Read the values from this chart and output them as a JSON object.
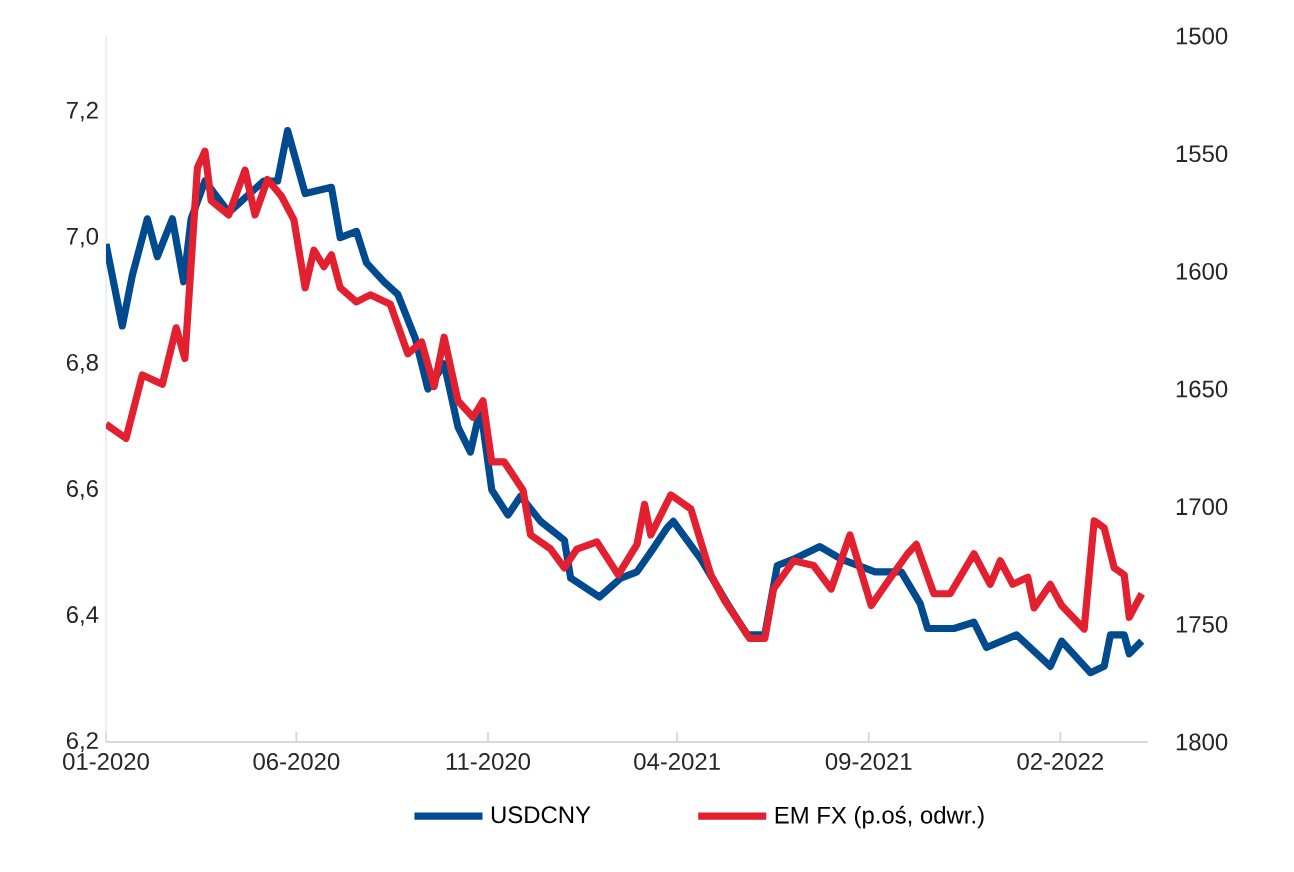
{
  "chart_data": {
    "type": "line",
    "xlim": [
      "2020-01-01",
      "2022-04-12"
    ],
    "xticks": [
      {
        "value": "2020-01-01",
        "label": "01-2020"
      },
      {
        "value": "2020-06-01",
        "label": "06-2020"
      },
      {
        "value": "2020-11-01",
        "label": "11-2020"
      },
      {
        "value": "2021-04-01",
        "label": "04-2021"
      },
      {
        "value": "2021-09-01",
        "label": "09-2021"
      },
      {
        "value": "2022-02-01",
        "label": "02-2022"
      }
    ],
    "ylim": [
      6.2,
      7.32
    ],
    "yticks": [
      {
        "value": 6.2,
        "label": "6,2"
      },
      {
        "value": 6.4,
        "label": "6,4"
      },
      {
        "value": 6.6,
        "label": "6,6"
      },
      {
        "value": 6.8,
        "label": "6,8"
      },
      {
        "value": 7.0,
        "label": "7,0"
      },
      {
        "value": 7.2,
        "label": "7,2"
      }
    ],
    "y2lim": [
      1800,
      1500
    ],
    "y2ticks": [
      1500,
      1550,
      1600,
      1650,
      1700,
      1750,
      1800
    ],
    "legend": "bottom",
    "series": [
      {
        "name": "USDCNY",
        "color": "#004a8f",
        "x": [
          "2020-01-01",
          "2020-01-14",
          "2020-01-22",
          "2020-02-03",
          "2020-02-11",
          "2020-02-23",
          "2020-03-03",
          "2020-03-09",
          "2020-03-20",
          "2020-04-08",
          "2020-05-06",
          "2020-05-17",
          "2020-05-25",
          "2020-06-08",
          "2020-06-29",
          "2020-07-06",
          "2020-07-19",
          "2020-07-27",
          "2020-08-10",
          "2020-08-21",
          "2020-09-04",
          "2020-09-14",
          "2020-09-27",
          "2020-10-08",
          "2020-10-18",
          "2020-10-26",
          "2020-11-04",
          "2020-11-17",
          "2020-11-27",
          "2020-12-13",
          "2021-01-01",
          "2021-01-06",
          "2021-01-29",
          "2021-02-15",
          "2021-02-28",
          "2021-03-14",
          "2021-03-24",
          "2021-03-29",
          "2021-04-20",
          "2021-05-11",
          "2021-05-27",
          "2021-06-10",
          "2021-06-20",
          "2021-07-03",
          "2021-07-24",
          "2021-08-10",
          "2021-09-06",
          "2021-09-27",
          "2021-10-12",
          "2021-10-18",
          "2021-11-08",
          "2021-11-24",
          "2021-12-04",
          "2021-12-28",
          "2022-01-24",
          "2022-02-02",
          "2022-02-25",
          "2022-03-08",
          "2022-03-13",
          "2022-03-24",
          "2022-03-28",
          "2022-04-07"
        ],
        "values": [
          6.99,
          6.86,
          6.94,
          7.03,
          6.97,
          7.03,
          6.93,
          7.03,
          7.09,
          7.04,
          7.09,
          7.09,
          7.17,
          7.07,
          7.08,
          7.0,
          7.01,
          6.96,
          6.93,
          6.91,
          6.84,
          6.76,
          6.8,
          6.7,
          6.66,
          6.73,
          6.6,
          6.56,
          6.59,
          6.55,
          6.52,
          6.46,
          6.43,
          6.46,
          6.47,
          6.51,
          6.54,
          6.55,
          6.49,
          6.42,
          6.37,
          6.37,
          6.48,
          6.49,
          6.51,
          6.49,
          6.47,
          6.47,
          6.42,
          6.38,
          6.38,
          6.39,
          6.35,
          6.37,
          6.32,
          6.36,
          6.31,
          6.32,
          6.37,
          6.37,
          6.34,
          6.36
        ]
      },
      {
        "name": "EM FX (p.oś, odwr.)",
        "color": "#e3202f",
        "axis": "y2",
        "x": [
          "2020-01-01",
          "2020-01-17",
          "2020-01-30",
          "2020-02-15",
          "2020-02-26",
          "2020-03-04",
          "2020-03-14",
          "2020-03-20",
          "2020-03-25",
          "2020-04-08",
          "2020-04-21",
          "2020-04-29",
          "2020-05-09",
          "2020-05-20",
          "2020-05-30",
          "2020-06-08",
          "2020-06-15",
          "2020-06-23",
          "2020-06-29",
          "2020-07-06",
          "2020-07-19",
          "2020-07-30",
          "2020-08-15",
          "2020-08-29",
          "2020-09-09",
          "2020-09-19",
          "2020-09-27",
          "2020-10-08",
          "2020-10-20",
          "2020-10-28",
          "2020-11-04",
          "2020-11-14",
          "2020-11-29",
          "2020-12-05",
          "2020-12-21",
          "2021-01-01",
          "2021-01-11",
          "2021-01-27",
          "2021-02-13",
          "2021-02-28",
          "2021-03-06",
          "2021-03-11",
          "2021-03-27",
          "2021-04-12",
          "2021-04-28",
          "2021-05-09",
          "2021-05-29",
          "2021-06-10",
          "2021-06-17",
          "2021-07-03",
          "2021-07-19",
          "2021-08-02",
          "2021-08-17",
          "2021-09-03",
          "2021-09-16",
          "2021-10-02",
          "2021-10-09",
          "2021-10-23",
          "2021-11-05",
          "2021-11-24",
          "2021-12-07",
          "2021-12-15",
          "2021-12-25",
          "2022-01-06",
          "2022-01-11",
          "2022-01-24",
          "2022-02-02",
          "2022-02-20",
          "2022-02-28",
          "2022-03-08",
          "2022-03-16",
          "2022-03-24",
          "2022-03-28",
          "2022-04-07"
        ],
        "values": [
          1665,
          1671,
          1644,
          1648,
          1624,
          1637,
          1556,
          1549,
          1570,
          1576,
          1557,
          1576,
          1561,
          1568,
          1578,
          1607,
          1591,
          1598,
          1593,
          1607,
          1613,
          1610,
          1614,
          1635,
          1630,
          1649,
          1628,
          1655,
          1662,
          1655,
          1681,
          1681,
          1693,
          1712,
          1718,
          1726,
          1718,
          1715,
          1729,
          1716,
          1699,
          1712,
          1695,
          1701,
          1729,
          1740,
          1756,
          1756,
          1735,
          1723,
          1725,
          1735,
          1712,
          1742,
          1732,
          1720,
          1716,
          1737,
          1737,
          1720,
          1733,
          1723,
          1733,
          1730,
          1743,
          1733,
          1742,
          1752,
          1706,
          1709,
          1726,
          1729,
          1747,
          1737
        ]
      }
    ]
  }
}
